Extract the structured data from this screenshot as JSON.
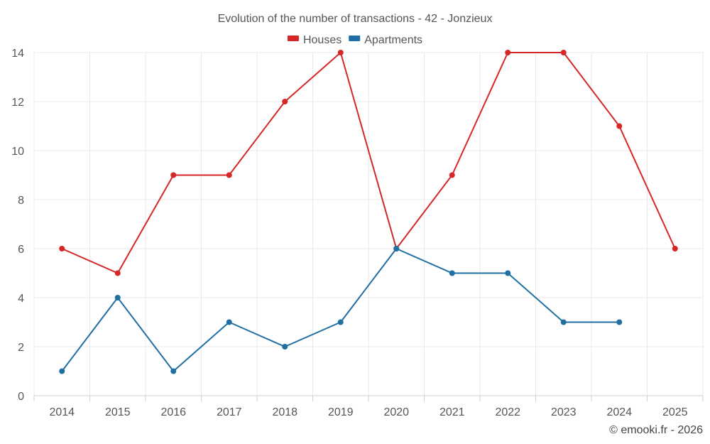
{
  "chart_data": {
    "type": "line",
    "title": "Evolution of the number of transactions - 42 - Jonzieux",
    "xlabel": "",
    "ylabel": "",
    "categories": [
      "2014",
      "2015",
      "2016",
      "2017",
      "2018",
      "2019",
      "2020",
      "2021",
      "2022",
      "2023",
      "2024",
      "2025"
    ],
    "ylim": [
      0,
      14
    ],
    "yticks": [
      "0",
      "2",
      "4",
      "6",
      "8",
      "10",
      "12",
      "14"
    ],
    "grid": true,
    "legend_position": "top-center",
    "series": [
      {
        "name": "Houses",
        "color": "#d62728",
        "values": [
          6,
          5,
          9,
          9,
          12,
          14,
          6,
          9,
          14,
          14,
          11,
          6
        ]
      },
      {
        "name": "Apartments",
        "color": "#1f6fa3",
        "values": [
          1,
          4,
          1,
          3,
          2,
          3,
          6,
          5,
          5,
          3,
          3,
          null
        ]
      }
    ]
  },
  "footer": {
    "credit": "© emooki.fr - 2026"
  }
}
